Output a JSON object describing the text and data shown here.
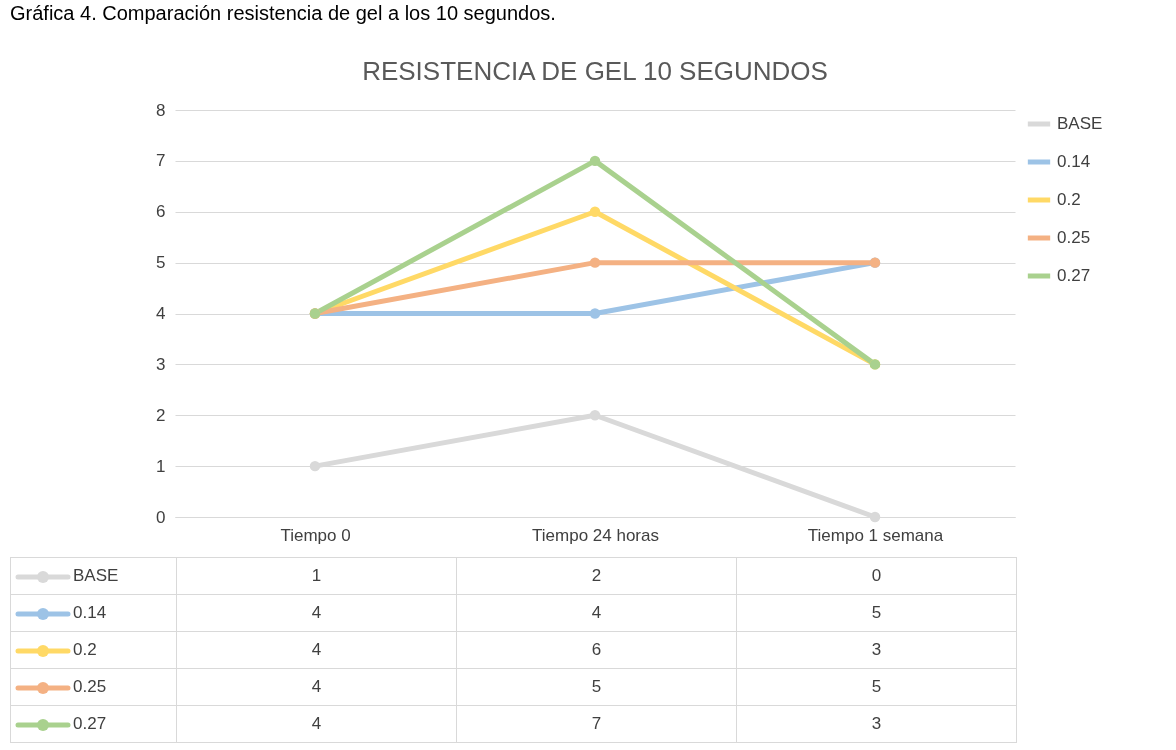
{
  "chart_data": {
    "type": "line",
    "title": "RESISTENCIA DE GEL 10 SEGUNDOS",
    "annotations": [
      "Gráfica 4. Comparación resistencia de gel a los 10 segundos."
    ],
    "categories": [
      "Tiempo 0",
      "Tiempo 24 horas",
      "Tiempo 1 semana"
    ],
    "series": [
      {
        "name": "BASE",
        "color": "#d9d9d9",
        "values": [
          1,
          2,
          0
        ]
      },
      {
        "name": "0.14",
        "color": "#9dc3e6",
        "values": [
          4,
          4,
          5
        ]
      },
      {
        "name": "0.2",
        "color": "#ffd966",
        "values": [
          4,
          6,
          3
        ]
      },
      {
        "name": "0.25",
        "color": "#f4b183",
        "values": [
          4,
          5,
          5
        ]
      },
      {
        "name": "0.27",
        "color": "#a9d18e",
        "values": [
          4,
          7,
          3
        ]
      }
    ],
    "ylim": [
      0,
      8
    ],
    "yticks": [
      0,
      1,
      2,
      3,
      4,
      5,
      6,
      7,
      8
    ],
    "grid": "y",
    "legend": "right",
    "marker": "circle",
    "line_style": "solid",
    "data_labels": true
  }
}
